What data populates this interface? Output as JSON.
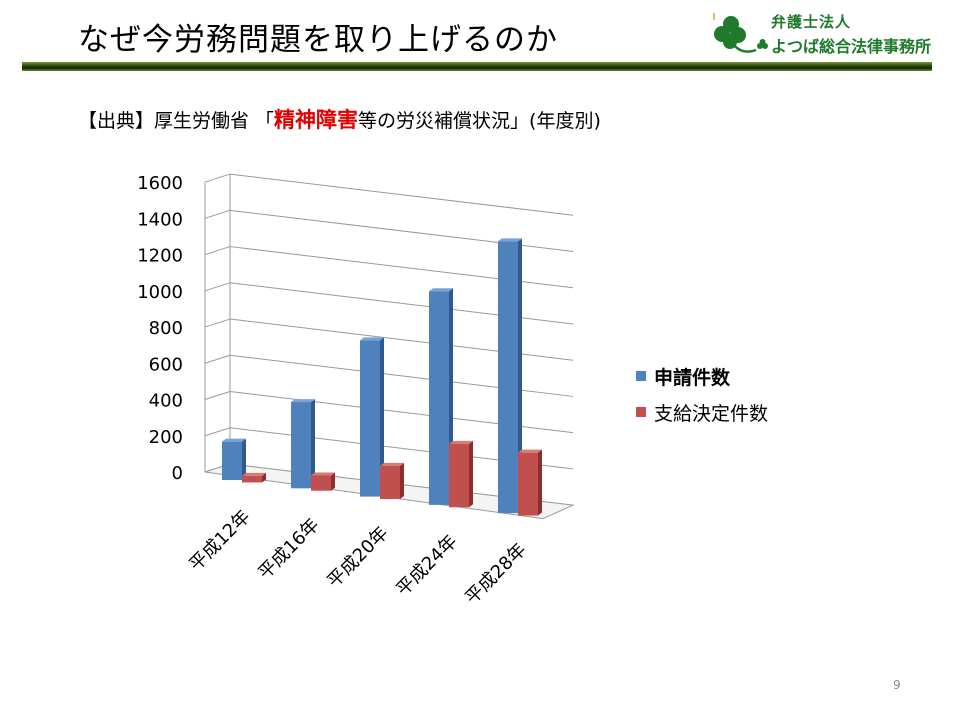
{
  "slide": {
    "title": "なぜ今労務問題を取り上げるのか",
    "source_prefix": "【出典】厚生労働省 「",
    "source_highlight": "精神障害",
    "source_suffix": "等の労災補償状況」(年度別)",
    "page_number": "9"
  },
  "logo": {
    "line1": "弁護士法人",
    "line2": "よつば総合法律事務所",
    "icon": "clover-icon"
  },
  "chart_data": {
    "type": "bar",
    "categories": [
      "平成12年",
      "平成16年",
      "平成20年",
      "平成24年",
      "平成28年"
    ],
    "series": [
      {
        "name": "申請件数",
        "color": "#4f81bd",
        "side": "#2f5a8f",
        "top": "#7ba2d6",
        "values": [
          212,
          476,
          862,
          1179,
          1500
        ]
      },
      {
        "name": "支給決定件数",
        "color": "#c0504d",
        "side": "#8c2e2c",
        "top": "#d87a77",
        "values": [
          36,
          84,
          183,
          350,
          347
        ]
      }
    ],
    "yticks": [
      0,
      200,
      400,
      600,
      800,
      1000,
      1200,
      1400,
      1600
    ],
    "ylim": [
      0,
      1600
    ],
    "legend_position": "right",
    "grid": true
  }
}
